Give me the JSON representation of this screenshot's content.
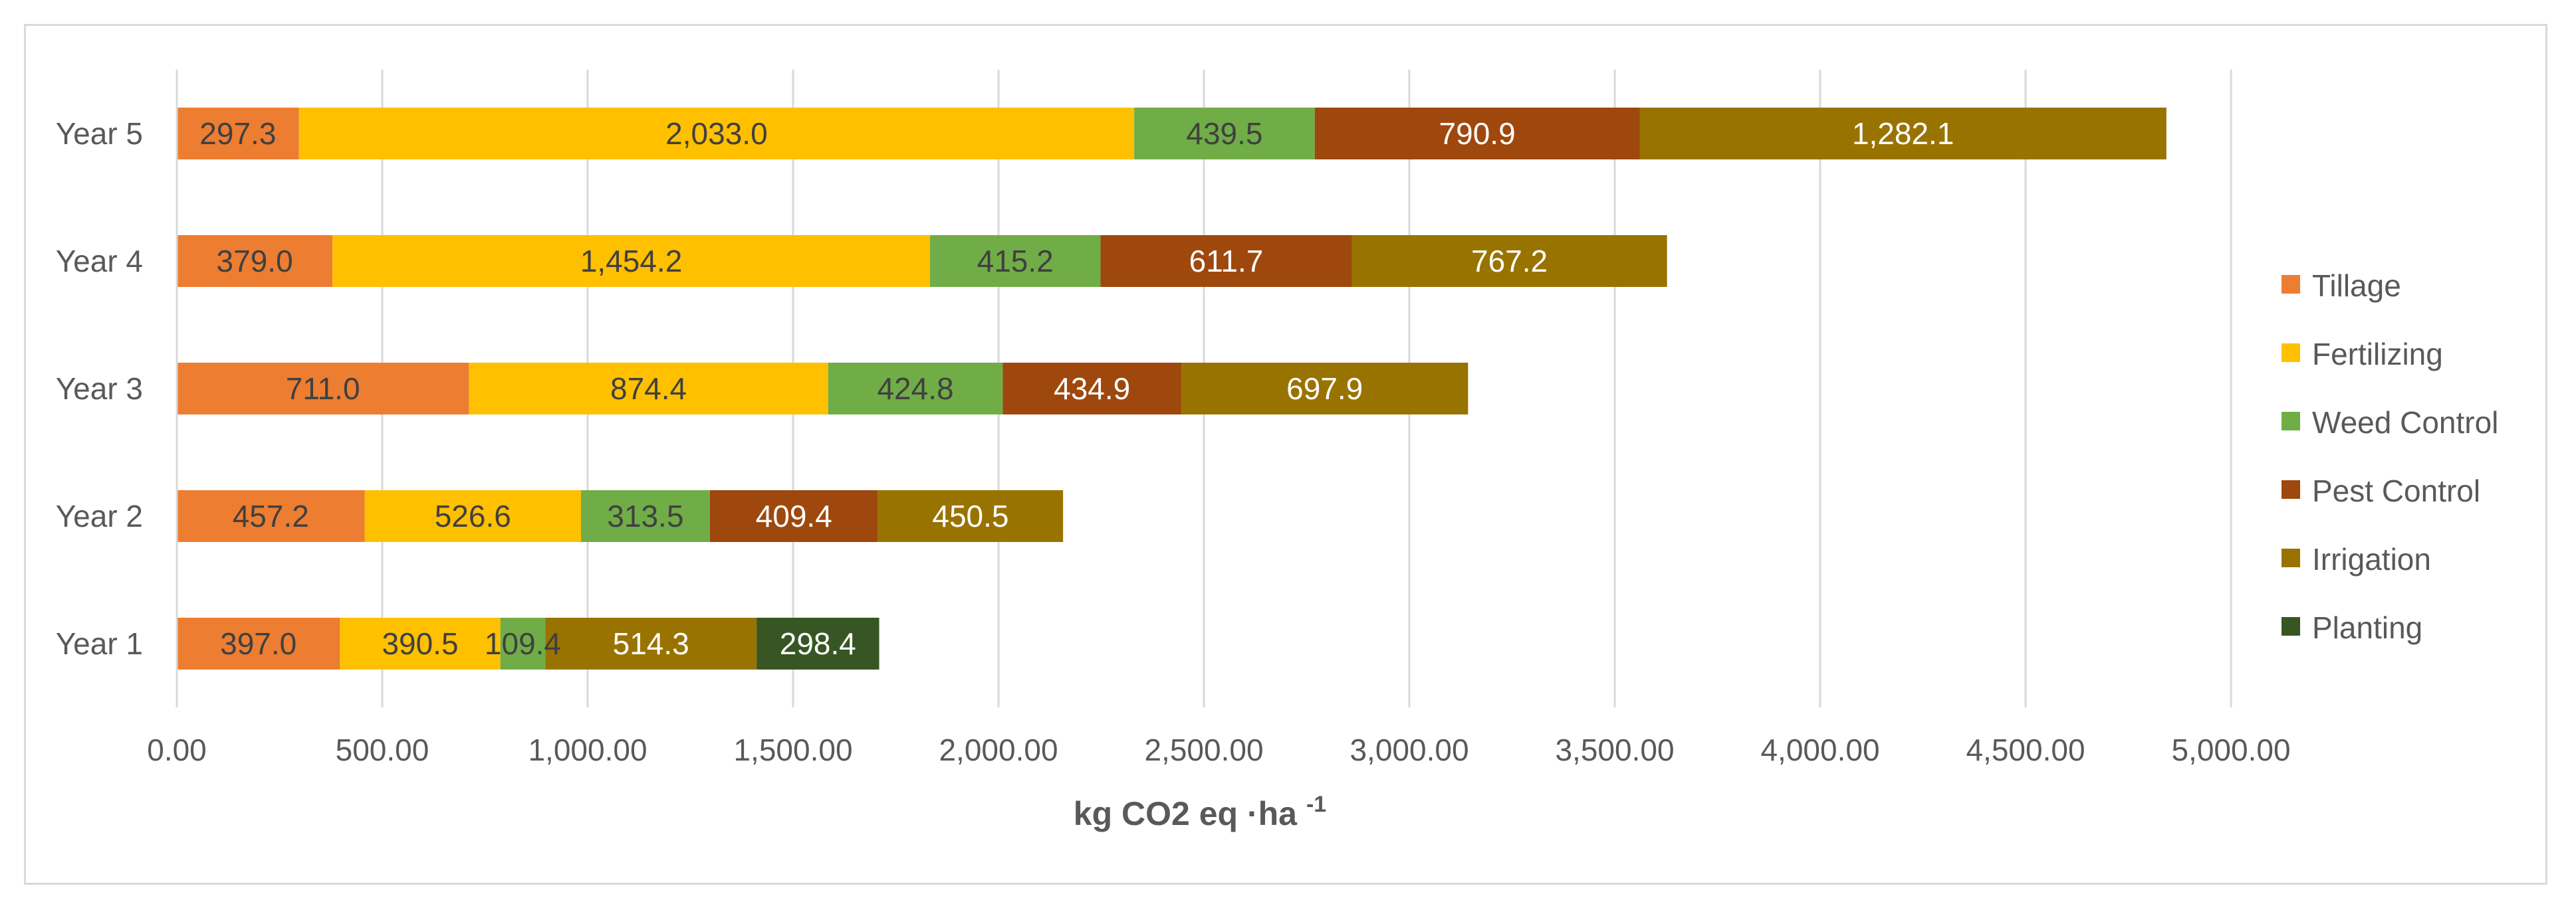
{
  "chart_data": {
    "type": "bar",
    "orientation": "horizontal",
    "stacked": true,
    "categories": [
      "Year 1",
      "Year 2",
      "Year 3",
      "Year 4",
      "Year 5"
    ],
    "series": [
      {
        "name": "Tillage",
        "color": "#ED7D31",
        "label_color": "#404040",
        "values": [
          397.0,
          457.2,
          711.0,
          379.0,
          297.3
        ],
        "labels": [
          "397.0",
          "457.2",
          "711.0",
          "379.0",
          "297.3"
        ]
      },
      {
        "name": "Fertilizing",
        "color": "#FFC000",
        "label_color": "#404040",
        "values": [
          390.5,
          526.6,
          874.4,
          1454.2,
          2033.0
        ],
        "labels": [
          "390.5",
          "526.6",
          "874.4",
          "1,454.2",
          "2,033.0"
        ]
      },
      {
        "name": "Weed Control",
        "color": "#70AD47",
        "label_color": "#404040",
        "values": [
          109.4,
          313.5,
          424.8,
          415.2,
          439.5
        ],
        "labels": [
          "109.4",
          "313.5",
          "424.8",
          "415.2",
          "439.5"
        ]
      },
      {
        "name": "Pest Control",
        "color": "#9E480E",
        "label_color": "#ffffff",
        "values": [
          0,
          409.4,
          434.9,
          611.7,
          790.9
        ],
        "labels": [
          "",
          "409.4",
          "434.9",
          "611.7",
          "790.9"
        ]
      },
      {
        "name": "Irrigation",
        "color": "#997300",
        "label_color": "#ffffff",
        "values": [
          514.3,
          450.5,
          697.9,
          767.2,
          1282.1
        ],
        "labels": [
          "514.3",
          "450.5",
          "697.9",
          "767.2",
          "1,282.1"
        ]
      },
      {
        "name": "Planting",
        "color": "#375623",
        "label_color": "#ffffff",
        "values": [
          298.4,
          0,
          0,
          0,
          0
        ],
        "labels": [
          "298.4",
          "",
          "",
          "",
          ""
        ]
      }
    ],
    "xlim": [
      0,
      5000
    ],
    "xticks": [
      0,
      500,
      1000,
      1500,
      2000,
      2500,
      3000,
      3500,
      4000,
      4500,
      5000
    ],
    "xtick_labels": [
      "0.00",
      "500.00",
      "1,000.00",
      "1,500.00",
      "2,000.00",
      "2,500.00",
      "3,000.00",
      "3,500.00",
      "4,000.00",
      "4,500.00",
      "5,000.00"
    ],
    "xlabel": "kg CO2 eq ·ha",
    "xlabel_superscript": "-1",
    "ylabel": "",
    "title": "",
    "grid": "vertical",
    "legend_position": "right"
  }
}
